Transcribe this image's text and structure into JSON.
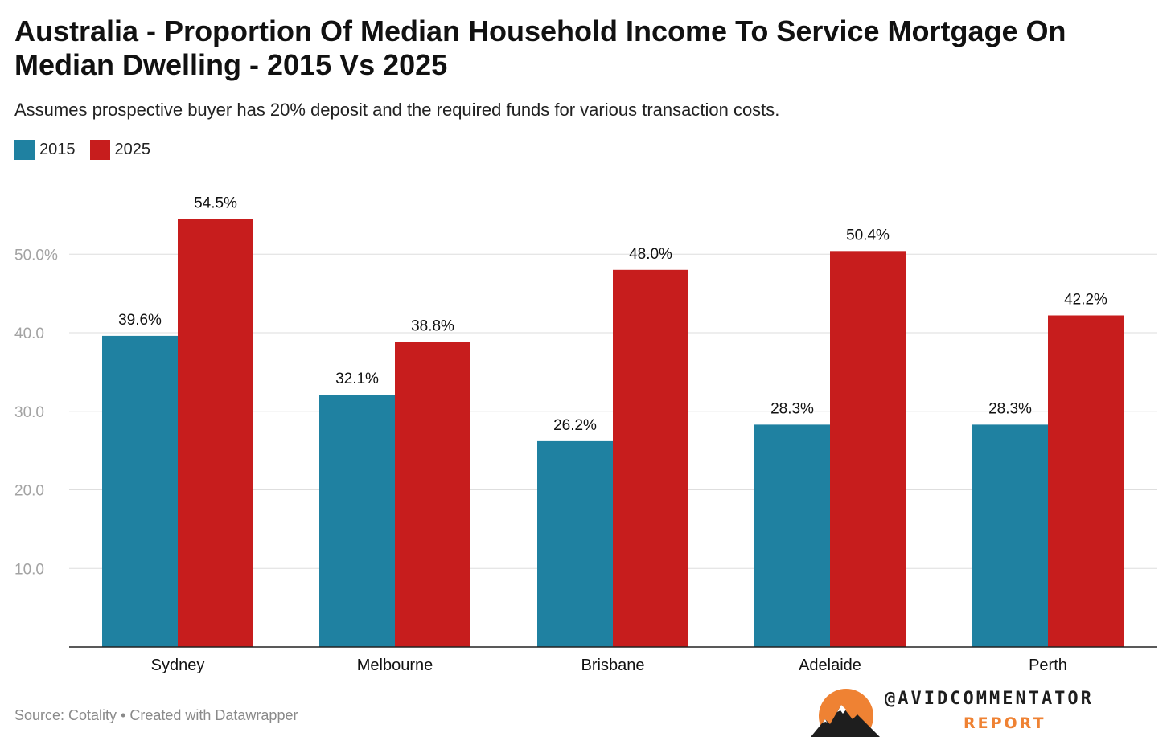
{
  "header": {
    "title": "Australia - Proportion Of Median Household Income To Service Mortgage On Median Dwelling - 2015 Vs 2025",
    "subtitle": "Assumes prospective buyer has 20% deposit and the required funds for various transaction costs."
  },
  "legend": [
    {
      "label": "2015",
      "color": "#1f81a1"
    },
    {
      "label": "2025",
      "color": "#c71d1d"
    }
  ],
  "footer": {
    "source": "Source: Cotality • Created with Datawrapper",
    "brand_handle": "@AVIDCOMMENTATOR",
    "brand_sub": "REPORT"
  },
  "chart_data": {
    "type": "bar",
    "categories": [
      "Sydney",
      "Melbourne",
      "Brisbane",
      "Adelaide",
      "Perth"
    ],
    "series": [
      {
        "name": "2015",
        "color": "#1f81a1",
        "values": [
          39.6,
          32.1,
          26.2,
          28.3,
          28.3
        ],
        "labels": [
          "39.6%",
          "32.1%",
          "26.2%",
          "28.3%",
          "28.3%"
        ]
      },
      {
        "name": "2025",
        "color": "#c71d1d",
        "values": [
          54.5,
          38.8,
          48.0,
          50.4,
          42.2
        ],
        "labels": [
          "54.5%",
          "38.8%",
          "48.0%",
          "50.4%",
          "42.2%"
        ]
      }
    ],
    "y_ticks": [
      {
        "value": 10,
        "label": "10.0"
      },
      {
        "value": 20,
        "label": "20.0"
      },
      {
        "value": 30,
        "label": "30.0"
      },
      {
        "value": 40,
        "label": "40.0"
      },
      {
        "value": 50,
        "label": "50.0%"
      }
    ],
    "ylim": [
      0,
      60
    ],
    "grid": true,
    "legend_position": "top-left",
    "title": "Australia - Proportion Of Median Household Income To Service Mortgage On Median Dwelling - 2015 Vs 2025",
    "xlabel": "",
    "ylabel": ""
  }
}
